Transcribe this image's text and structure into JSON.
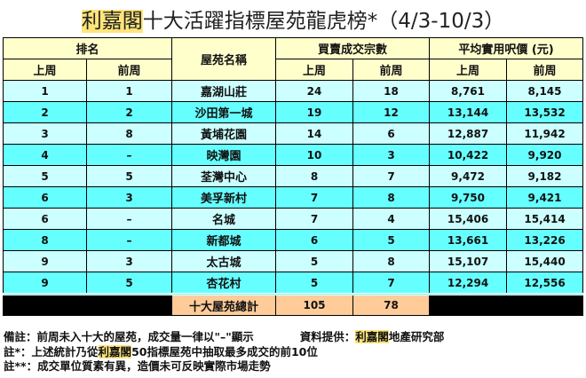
{
  "title": {
    "brand": "利嘉閣",
    "text": "十大活躍指標屋苑龍虎榜*（4/3-10/3）"
  },
  "headers": {
    "rank": "排名",
    "estate": "屋苑名稱",
    "transactions": "買賣成交宗數",
    "price": "平均實用呎價 (元)",
    "last_week": "上周",
    "prev_week": "前周"
  },
  "rows": [
    {
      "rank_last": "1",
      "rank_prev": "1",
      "estate": "嘉湖山莊",
      "tx_last": "24",
      "tx_prev": "18",
      "price_last": "8,761",
      "price_prev": "8,145"
    },
    {
      "rank_last": "2",
      "rank_prev": "2",
      "estate": "沙田第一城",
      "tx_last": "19",
      "tx_prev": "12",
      "price_last": "13,144",
      "price_prev": "13,532"
    },
    {
      "rank_last": "3",
      "rank_prev": "8",
      "estate": "黃埔花園",
      "tx_last": "14",
      "tx_prev": "6",
      "price_last": "12,887",
      "price_prev": "11,942"
    },
    {
      "rank_last": "4",
      "rank_prev": "–",
      "estate": "映灣園",
      "tx_last": "10",
      "tx_prev": "3",
      "price_last": "10,422",
      "price_prev": "9,920"
    },
    {
      "rank_last": "5",
      "rank_prev": "5",
      "estate": "荃灣中心",
      "tx_last": "8",
      "tx_prev": "7",
      "price_last": "9,472",
      "price_prev": "9,182"
    },
    {
      "rank_last": "6",
      "rank_prev": "3",
      "estate": "美孚新村",
      "tx_last": "7",
      "tx_prev": "8",
      "price_last": "9,750",
      "price_prev": "9,421"
    },
    {
      "rank_last": "6",
      "rank_prev": "–",
      "estate": "名城",
      "tx_last": "7",
      "tx_prev": "4",
      "price_last": "15,406",
      "price_prev": "15,414"
    },
    {
      "rank_last": "8",
      "rank_prev": "–",
      "estate": "新都城",
      "tx_last": "6",
      "tx_prev": "5",
      "price_last": "13,661",
      "price_prev": "13,226"
    },
    {
      "rank_last": "9",
      "rank_prev": "3",
      "estate": "太古城",
      "tx_last": "5",
      "tx_prev": "8",
      "price_last": "15,107",
      "price_prev": "15,440"
    },
    {
      "rank_last": "9",
      "rank_prev": "5",
      "estate": "杏花村",
      "tx_last": "5",
      "tx_prev": "7",
      "price_last": "12,294",
      "price_prev": "12,556"
    }
  ],
  "total": {
    "label": "十大屋苑總計",
    "tx_last": "105",
    "tx_prev": "78"
  },
  "notes": {
    "remark": "備註：前周未入十大的屋苑，成交量一律以\"–\"顯示",
    "source_prefix": "資料提供：",
    "source_brand": "利嘉閣",
    "source_suffix": "地產研究部",
    "note1_prefix": "註*：上述統計乃從",
    "note1_brand": "利嘉閣",
    "note1_suffix": "50指標屋苑中抽取最多成交的前10位",
    "note2": "註**：成交單位質素有異，造價未可反映實際市場走勢"
  },
  "colors": {
    "header": "#ffffcc",
    "row_light": "#ccffff",
    "row_dark": "#66ffff",
    "total": "#ffcc99",
    "highlight": "#ffe57a"
  }
}
